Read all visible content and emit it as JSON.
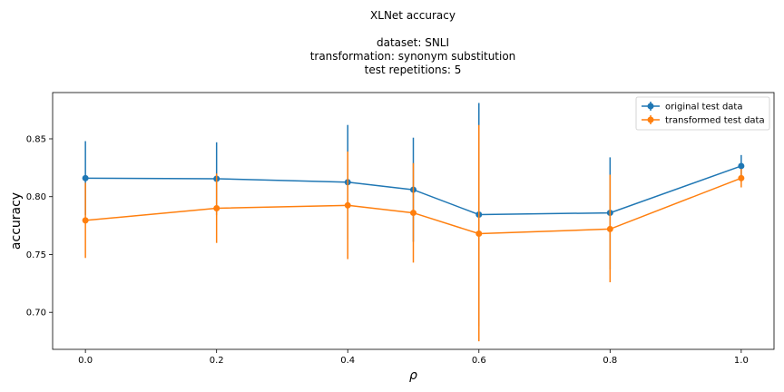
{
  "chart_data": {
    "type": "line",
    "title_lines": [
      "XLNet accuracy",
      "",
      "dataset: SNLI",
      "transformation: synonym substitution",
      "test repetitions: 5"
    ],
    "xlabel": "ρ",
    "ylabel": "accuracy",
    "x": [
      0.0,
      0.2,
      0.4,
      0.5,
      0.6,
      0.8,
      1.0
    ],
    "xlim": [
      -0.05,
      1.05
    ],
    "ylim": [
      0.668,
      0.89
    ],
    "xticks": [
      0.0,
      0.2,
      0.4,
      0.6,
      0.8,
      1.0
    ],
    "xtick_labels": [
      "0.0",
      "0.2",
      "0.4",
      "0.6",
      "0.8",
      "1.0"
    ],
    "yticks": [
      0.7,
      0.75,
      0.8,
      0.85
    ],
    "ytick_labels": [
      "0.70",
      "0.75",
      "0.80",
      "0.85"
    ],
    "grid": false,
    "legend_position": "top-right",
    "series": [
      {
        "name": "original test data",
        "color": "#1f77b4",
        "values": [
          0.816,
          0.8155,
          0.8125,
          0.806,
          0.7845,
          0.786,
          0.8265
        ],
        "err_low": [
          0.784,
          0.784,
          0.763,
          0.761,
          0.688,
          0.737,
          0.817
        ],
        "err_high": [
          0.848,
          0.847,
          0.862,
          0.851,
          0.881,
          0.834,
          0.836
        ]
      },
      {
        "name": "transformed test data",
        "color": "#ff7f0e",
        "values": [
          0.7795,
          0.79,
          0.7925,
          0.786,
          0.768,
          0.772,
          0.816
        ],
        "err_low": [
          0.747,
          0.76,
          0.746,
          0.743,
          0.675,
          0.726,
          0.808
        ],
        "err_high": [
          0.812,
          0.82,
          0.839,
          0.829,
          0.862,
          0.819,
          0.824
        ]
      }
    ]
  }
}
